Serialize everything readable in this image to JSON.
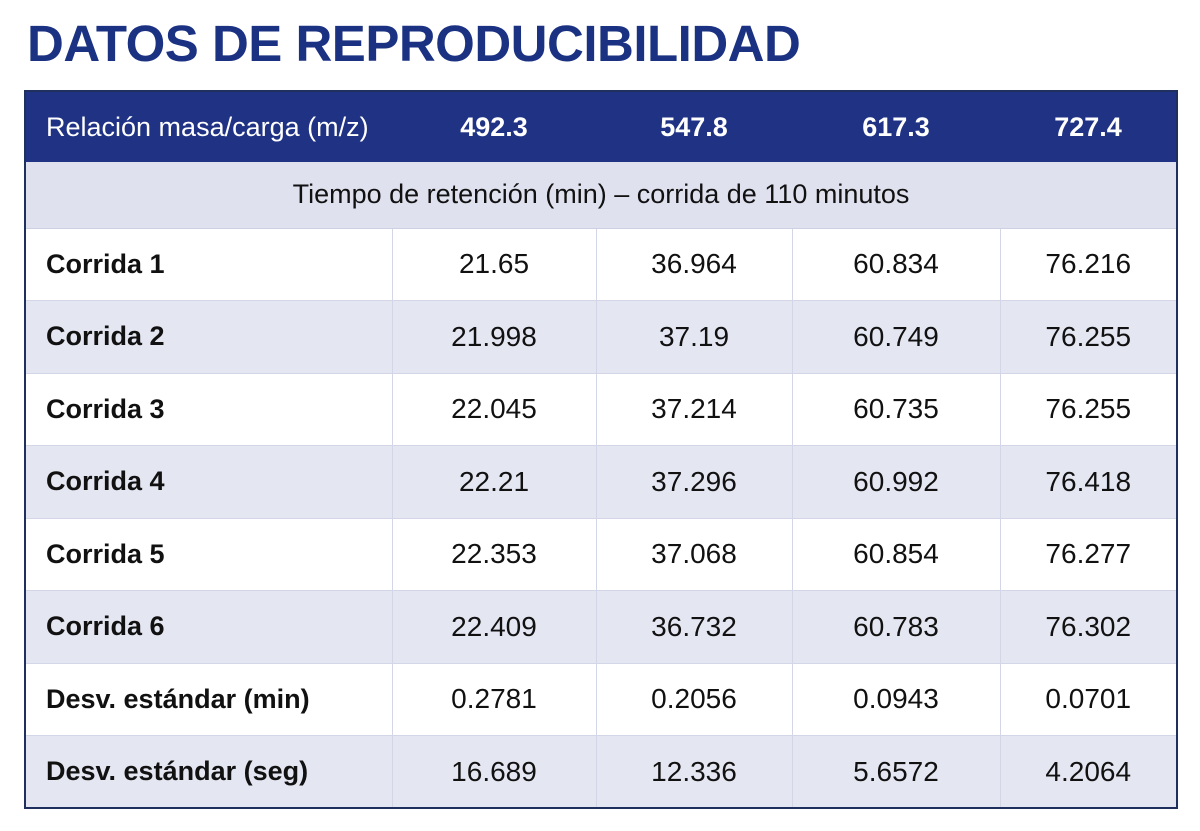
{
  "title": "DATOS DE REPRODUCIBILIDAD",
  "table": {
    "header": {
      "label": "Relación masa/carga (m/z)",
      "columns": [
        "492.3",
        "547.8",
        "617.3",
        "727.4"
      ]
    },
    "subheader": "Tiempo de retención (min) – corrida de 110 minutos",
    "rows": [
      {
        "label": "Corrida 1",
        "values": [
          "21.65",
          "36.964",
          "60.834",
          "76.216"
        ]
      },
      {
        "label": "Corrida 2",
        "values": [
          "21.998",
          "37.19",
          "60.749",
          "76.255"
        ]
      },
      {
        "label": "Corrida 3",
        "values": [
          "22.045",
          "37.214",
          "60.735",
          "76.255"
        ]
      },
      {
        "label": "Corrida 4",
        "values": [
          "22.21",
          "37.296",
          "60.992",
          "76.418"
        ]
      },
      {
        "label": "Corrida 5",
        "values": [
          "22.353",
          "37.068",
          "60.854",
          "76.277"
        ]
      },
      {
        "label": "Corrida 6",
        "values": [
          "22.409",
          "36.732",
          "60.783",
          "76.302"
        ]
      },
      {
        "label": "Desv. estándar (min)",
        "values": [
          "0.2781",
          "0.2056",
          "0.0943",
          "0.0701"
        ]
      },
      {
        "label": "Desv. estándar (seg)",
        "values": [
          "16.689",
          "12.336",
          "5.6572",
          "4.2064"
        ]
      }
    ]
  },
  "colors": {
    "title": "#1b3182",
    "header_bg": "#1f3284",
    "subheader_bg": "#dfe1ef",
    "alt_row_bg": "#e4e6f2"
  }
}
